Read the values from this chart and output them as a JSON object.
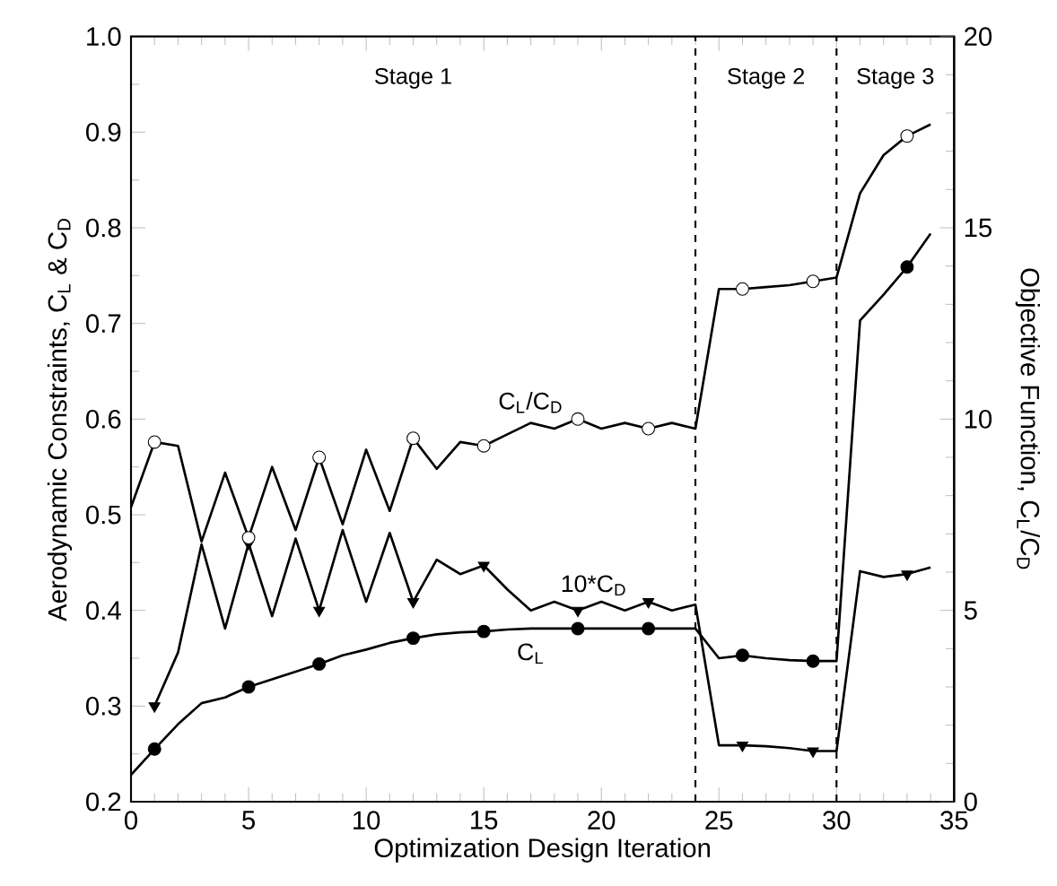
{
  "chart_data": {
    "type": "line",
    "xlabel": "Optimization Design Iteration",
    "ylabel": "Aerodynamic Constraints, C$_{L}$ & C$_{D}$",
    "y2label": "Objective Function, C$_{L}$/C$_{D}$",
    "xlim": [
      0,
      35
    ],
    "xticks": [
      0,
      5,
      10,
      15,
      20,
      25,
      30,
      35
    ],
    "ylim": [
      0.2,
      1.0
    ],
    "yticks": [
      0.2,
      0.3,
      0.4,
      0.5,
      0.6,
      0.7,
      0.8,
      0.9,
      {
        "value": 1.0,
        "label": "1.0"
      }
    ],
    "y2lim": [
      0,
      20
    ],
    "y2ticks": [
      0,
      5,
      10,
      15,
      20
    ],
    "series": [
      {
        "name": "C$_{L}$/C$_{D}$",
        "axis": "y2",
        "color": "#000000",
        "x": [
          0,
          1,
          2,
          3,
          4,
          5,
          6,
          7,
          8,
          9,
          10,
          11,
          12,
          13,
          14,
          15,
          16,
          17,
          18,
          19,
          20,
          21,
          22,
          23,
          24,
          25,
          26,
          27,
          28,
          29,
          30,
          31,
          32,
          33,
          34
        ],
        "values": [
          7.7,
          9.4,
          9.3,
          6.8,
          8.6,
          6.9,
          8.75,
          7.1,
          9.0,
          7.25,
          9.2,
          7.6,
          9.5,
          8.7,
          9.4,
          9.3,
          9.6,
          9.9,
          9.75,
          10.0,
          9.75,
          9.9,
          9.75,
          9.9,
          9.75,
          13.4,
          13.4,
          13.45,
          13.5,
          13.6,
          13.7,
          15.9,
          16.9,
          17.4,
          17.7
        ]
      },
      {
        "type": "scatter",
        "axis": "y2",
        "color": "#ffffff",
        "marker": "circle",
        "x": [
          1,
          5,
          8,
          12,
          15,
          19,
          22,
          26,
          29,
          33
        ],
        "values": [
          9.4,
          6.9,
          9.0,
          9.5,
          9.3,
          10.0,
          9.75,
          13.4,
          13.6,
          17.4
        ]
      },
      {
        "name": "10*C$_{D}$",
        "color": "#000000",
        "x": [
          1,
          2,
          3,
          4,
          5,
          6,
          7,
          8,
          9,
          10,
          11,
          12,
          13,
          14,
          15,
          16,
          17,
          18,
          19,
          20,
          21,
          22,
          23,
          24,
          25,
          26,
          27,
          28,
          29,
          30,
          31,
          32,
          33,
          34
        ],
        "values": [
          0.3,
          0.356,
          0.469,
          0.381,
          0.47,
          0.394,
          0.475,
          0.4,
          0.484,
          0.409,
          0.481,
          0.409,
          0.453,
          0.438,
          0.447,
          0.422,
          0.4,
          0.409,
          0.4,
          0.409,
          0.4,
          0.409,
          0.4,
          0.406,
          0.259,
          0.259,
          0.258,
          0.256,
          0.253,
          0.253,
          0.441,
          0.435,
          0.438,
          0.445
        ]
      },
      {
        "type": "scatter",
        "color": "#000000",
        "marker": "triangle",
        "x": [
          1,
          5,
          8,
          12,
          15,
          19,
          22,
          26,
          29,
          33
        ],
        "values": [
          0.3,
          0.47,
          0.4,
          0.409,
          0.447,
          0.4,
          0.409,
          0.259,
          0.253,
          0.438
        ]
      },
      {
        "name": "C$_{L}$",
        "color": "#000000",
        "x": [
          0,
          1,
          2,
          3,
          4,
          5,
          6,
          7,
          8,
          9,
          10,
          11,
          12,
          13,
          14,
          15,
          16,
          17,
          18,
          19,
          20,
          21,
          22,
          23,
          24,
          25,
          26,
          27,
          28,
          29,
          30,
          31,
          32,
          33,
          34
        ],
        "values": [
          0.228,
          0.255,
          0.281,
          0.303,
          0.309,
          0.32,
          0.328,
          0.336,
          0.344,
          0.353,
          0.359,
          0.366,
          0.371,
          0.375,
          0.377,
          0.378,
          0.38,
          0.381,
          0.381,
          0.381,
          0.381,
          0.381,
          0.381,
          0.381,
          0.381,
          0.35,
          0.353,
          0.35,
          0.348,
          0.347,
          0.347,
          0.703,
          0.73,
          0.759,
          0.794
        ]
      },
      {
        "type": "scatter",
        "color": "#000000",
        "marker": "circle",
        "x": [
          1,
          5,
          8,
          12,
          15,
          19,
          22,
          26,
          29,
          33
        ],
        "values": [
          0.255,
          0.32,
          0.344,
          0.371,
          0.378,
          0.381,
          0.381,
          0.353,
          0.347,
          0.759
        ]
      }
    ],
    "ref_lines": [
      {
        "axis": "x",
        "value": 24,
        "line_style": "dashed"
      },
      {
        "axis": "x",
        "value": 30,
        "line_style": "dashed"
      }
    ],
    "annotations": [
      "Stage 1",
      "Stage 2",
      "Stage 3"
    ]
  }
}
